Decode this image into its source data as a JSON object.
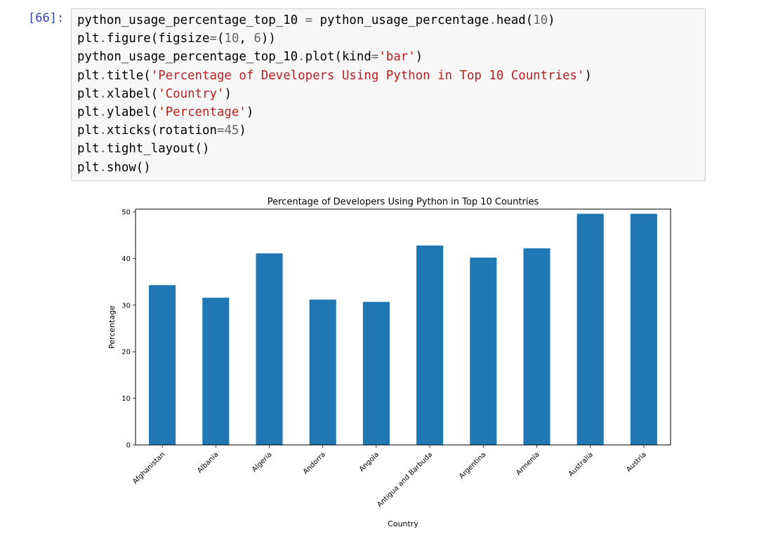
{
  "cell": {
    "prompt": "[66]:",
    "code_lines": [
      [
        {
          "t": "python_usage_percentage_top_10 "
        },
        {
          "t": "=",
          "c": "op"
        },
        {
          "t": " python_usage_percentage"
        },
        {
          "t": ".",
          "c": "op"
        },
        {
          "t": "head("
        },
        {
          "t": "10",
          "c": "num"
        },
        {
          "t": ")"
        }
      ],
      [
        {
          "t": "plt"
        },
        {
          "t": ".",
          "c": "op"
        },
        {
          "t": "figure(figsize"
        },
        {
          "t": "=",
          "c": "op"
        },
        {
          "t": "("
        },
        {
          "t": "10",
          "c": "num"
        },
        {
          "t": ", "
        },
        {
          "t": "6",
          "c": "num"
        },
        {
          "t": "))"
        }
      ],
      [
        {
          "t": "python_usage_percentage_top_10"
        },
        {
          "t": ".",
          "c": "op"
        },
        {
          "t": "plot(kind"
        },
        {
          "t": "=",
          "c": "op"
        },
        {
          "t": "'bar'",
          "c": "str"
        },
        {
          "t": ")"
        }
      ],
      [
        {
          "t": "plt"
        },
        {
          "t": ".",
          "c": "op"
        },
        {
          "t": "title("
        },
        {
          "t": "'Percentage of Developers Using Python in Top 10 Countries'",
          "c": "str"
        },
        {
          "t": ")"
        }
      ],
      [
        {
          "t": "plt"
        },
        {
          "t": ".",
          "c": "op"
        },
        {
          "t": "xlabel("
        },
        {
          "t": "'Country'",
          "c": "str"
        },
        {
          "t": ")"
        }
      ],
      [
        {
          "t": "plt"
        },
        {
          "t": ".",
          "c": "op"
        },
        {
          "t": "ylabel("
        },
        {
          "t": "'Percentage'",
          "c": "str"
        },
        {
          "t": ")"
        }
      ],
      [
        {
          "t": "plt"
        },
        {
          "t": ".",
          "c": "op"
        },
        {
          "t": "xticks(rotation"
        },
        {
          "t": "=",
          "c": "op"
        },
        {
          "t": "45",
          "c": "num"
        },
        {
          "t": ")"
        }
      ],
      [
        {
          "t": "plt"
        },
        {
          "t": ".",
          "c": "op"
        },
        {
          "t": "tight_layout()"
        }
      ],
      [
        {
          "t": "plt"
        },
        {
          "t": ".",
          "c": "op"
        },
        {
          "t": "show()"
        }
      ]
    ]
  },
  "chart_data": {
    "type": "bar",
    "title": "Percentage of Developers Using Python in Top 10 Countries",
    "xlabel": "Country",
    "ylabel": "Percentage",
    "categories": [
      "Afghanistan",
      "Albania",
      "Algeria",
      "Andorra",
      "Angola",
      "Antigua and Barbuda",
      "Argentina",
      "Armenia",
      "Australia",
      "Austria"
    ],
    "values": [
      34.3,
      31.6,
      41.1,
      31.2,
      30.7,
      42.8,
      40.2,
      42.2,
      49.6,
      49.6
    ],
    "ylim": [
      0,
      50.6
    ],
    "yticks": [
      0,
      10,
      20,
      30,
      40,
      50
    ],
    "bar_color": "#1f77b4",
    "grid": false,
    "xtick_rotation": 45
  }
}
